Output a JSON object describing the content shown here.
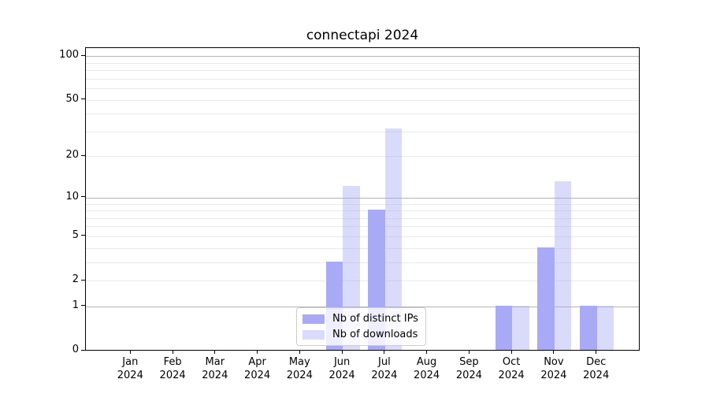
{
  "chart_data": {
    "type": "bar",
    "title": "connectapi 2024",
    "year_label": "2024",
    "months": [
      "Jan",
      "Feb",
      "Mar",
      "Apr",
      "May",
      "Jun",
      "Jul",
      "Aug",
      "Sep",
      "Oct",
      "Nov",
      "Dec"
    ],
    "series": [
      {
        "name": "Nb of distinct IPs",
        "color": "#a8aaf6",
        "alpha": 1,
        "values": [
          0,
          0,
          0,
          0,
          0,
          3,
          8,
          0,
          0,
          1,
          4,
          1
        ]
      },
      {
        "name": "Nb of downloads",
        "color": "#a8aaf6",
        "alpha": 0.42,
        "color_on_white": "#dadcfa",
        "values": [
          0,
          0,
          0,
          0,
          0,
          12,
          31,
          0,
          0,
          1,
          13,
          1
        ]
      }
    ],
    "y_ticks": [
      0,
      1,
      2,
      5,
      10,
      20,
      50,
      100
    ],
    "scale": "log1p",
    "ylim": [
      0,
      113
    ],
    "grid": "both",
    "grid_major": [
      1,
      10,
      100
    ],
    "grid_minor": [
      2,
      3,
      4,
      5,
      6,
      7,
      8,
      9,
      20,
      30,
      40,
      50,
      60,
      70,
      80,
      90
    ],
    "legend_position": "lower center",
    "colors": {
      "grid_major": "#b4b4b4",
      "grid_minor": "#e9e9e9",
      "axis": "#000000",
      "background": "#ffffff"
    }
  }
}
